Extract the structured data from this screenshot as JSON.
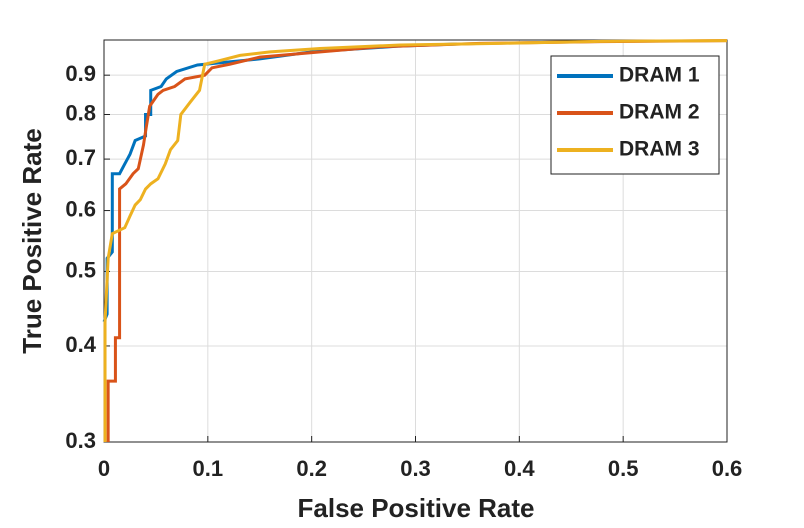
{
  "chart_data": {
    "type": "line",
    "xlabel": "False Positive Rate",
    "ylabel": "True Positive Rate",
    "xlim": [
      0,
      0.6
    ],
    "xticks": [
      0,
      0.1,
      0.2,
      0.3,
      0.4,
      0.5,
      0.6
    ],
    "ylim": [
      0.3,
      1
    ],
    "yticks": [
      0.3,
      0.4,
      0.5,
      0.6,
      0.7,
      0.8,
      0.9
    ],
    "yscale": "log",
    "grid": true,
    "legend": "upper right",
    "series": [
      {
        "name": "DRAM 1",
        "color": "#0072bd",
        "x": [
          0,
          0.003,
          0.003,
          0.008,
          0.008,
          0.015,
          0.02,
          0.025,
          0.03,
          0.04,
          0.04,
          0.045,
          0.045,
          0.055,
          0.06,
          0.07,
          0.09,
          0.15,
          0.2,
          0.285,
          0.34
        ],
        "values": [
          0.43,
          0.44,
          0.52,
          0.53,
          0.67,
          0.67,
          0.69,
          0.71,
          0.74,
          0.75,
          0.8,
          0.8,
          0.86,
          0.87,
          0.89,
          0.91,
          0.928,
          0.945,
          0.965,
          0.982,
          0.988
        ]
      },
      {
        "name": "DRAM 2",
        "color": "#d95319",
        "x": [
          0.004,
          0.004,
          0.011,
          0.011,
          0.015,
          0.015,
          0.021,
          0.028,
          0.033,
          0.038,
          0.04,
          0.044,
          0.052,
          0.057,
          0.068,
          0.078,
          0.097,
          0.104,
          0.121,
          0.15,
          0.189,
          0.266,
          0.362,
          0.478,
          0.6
        ],
        "values": [
          0.3,
          0.36,
          0.36,
          0.41,
          0.41,
          0.64,
          0.65,
          0.67,
          0.68,
          0.73,
          0.76,
          0.82,
          0.85,
          0.86,
          0.87,
          0.89,
          0.9,
          0.92,
          0.93,
          0.95,
          0.96,
          0.98,
          0.99,
          0.995,
          0.998
        ]
      },
      {
        "name": "DRAM 3",
        "color": "#edb120",
        "x": [
          0.001,
          0.001,
          0.004,
          0.008,
          0.02,
          0.025,
          0.03,
          0.035,
          0.04,
          0.045,
          0.052,
          0.059,
          0.064,
          0.071,
          0.074,
          0.083,
          0.092,
          0.097,
          0.111,
          0.131,
          0.16,
          0.208,
          0.285,
          0.381,
          0.478,
          0.6
        ],
        "values": [
          0.3,
          0.43,
          0.52,
          0.56,
          0.57,
          0.59,
          0.61,
          0.62,
          0.64,
          0.65,
          0.66,
          0.69,
          0.72,
          0.74,
          0.8,
          0.83,
          0.86,
          0.93,
          0.94,
          0.955,
          0.965,
          0.975,
          0.985,
          0.99,
          0.996,
          0.998
        ]
      }
    ]
  }
}
